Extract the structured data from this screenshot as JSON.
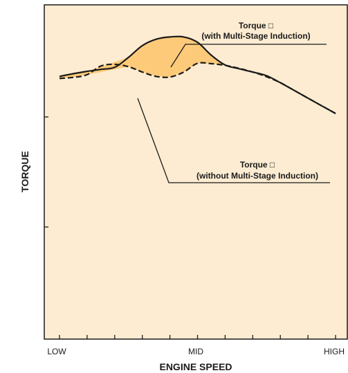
{
  "chart_data": {
    "type": "line",
    "xlabel": "ENGINE SPEED",
    "ylabel": "TORQUE",
    "x_tick_labels": [
      "LOW",
      "MID",
      "HIGH"
    ],
    "x_range": [
      0,
      10
    ],
    "y_range": [
      0,
      100
    ],
    "grid": false,
    "series": [
      {
        "name": "Torque (with Multi-Stage Induction)",
        "style": "solid",
        "x": [
          0,
          0.5,
          1.0,
          1.5,
          2.0,
          2.5,
          3.0,
          3.5,
          4.0,
          4.5,
          5.0,
          5.5,
          6.0,
          6.5,
          7.0,
          7.5,
          8.0,
          8.5,
          9.0,
          9.5,
          10.0
        ],
        "y": [
          78.6,
          79.4,
          80.1,
          80.7,
          81.3,
          84.3,
          87.8,
          89.7,
          90.4,
          90.4,
          88.8,
          84.9,
          82.0,
          80.9,
          79.9,
          78.8,
          76.7,
          74.4,
          72.1,
          69.8,
          67.5
        ]
      },
      {
        "name": "Torque (without Multi-Stage Induction)",
        "style": "dashed",
        "x": [
          0,
          0.5,
          1.0,
          1.5,
          2.0,
          2.5,
          3.0,
          3.5,
          4.0,
          4.5,
          5.0,
          5.5,
          6.0,
          6.5,
          7.0,
          7.5,
          8.0,
          8.5,
          9.0,
          9.5,
          10.0
        ],
        "y": [
          78.0,
          78.3,
          79.1,
          81.7,
          82.2,
          81.5,
          79.9,
          78.6,
          78.4,
          79.9,
          82.5,
          82.4,
          81.9,
          81.0,
          79.9,
          78.5,
          76.7,
          74.4,
          72.1,
          69.8,
          67.5
        ]
      }
    ],
    "shaded_region": {
      "between": [
        "Torque (with Multi-Stage Induction)",
        "Torque (without Multi-Stage Induction)"
      ],
      "color": "#fdca7a"
    },
    "annotations": [
      {
        "line1": "Torque □",
        "line2": "(with Multi-Stage Induction)"
      },
      {
        "line1": "Torque □",
        "line2": "(without Multi-Stage Induction)"
      }
    ],
    "colors": {
      "plot_background": "#fdecd2",
      "fill": "#fdca7a",
      "line": "#1a1a1a",
      "axis": "#1a1a1a"
    }
  }
}
